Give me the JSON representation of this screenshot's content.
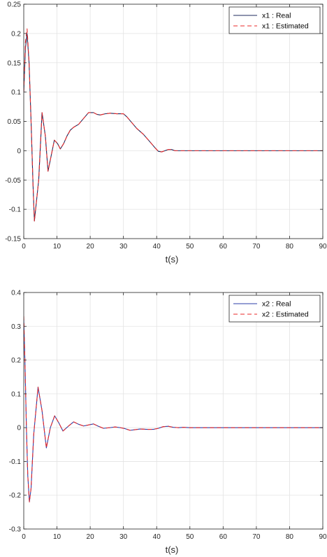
{
  "chart_data": [
    {
      "type": "line",
      "xlabel": "t(s)",
      "ylabel": "",
      "title": "",
      "xlim": [
        0,
        90
      ],
      "ylim": [
        -0.15,
        0.25
      ],
      "xticks": [
        0,
        10,
        20,
        30,
        40,
        50,
        60,
        70,
        80,
        90
      ],
      "xtick_labels": [
        "0",
        "10",
        "20",
        "30",
        "40",
        "50",
        "60",
        "70",
        "80",
        "90"
      ],
      "yticks": [
        -0.15,
        -0.1,
        -0.05,
        0,
        0.05,
        0.1,
        0.15,
        0.2,
        0.25
      ],
      "ytick_labels": [
        "-0.15",
        "-0.1",
        "-0.05",
        "0",
        "0.05",
        "0.1",
        "0.15",
        "0.2",
        "0.25"
      ],
      "grid": true,
      "legend_position": "top-right",
      "series": [
        {
          "name": "x1 : Real",
          "color": "#1f2a5c",
          "style": "solid",
          "x": [
            0,
            0.5,
            1.0,
            1.6,
            2.2,
            2.8,
            3.2,
            4.5,
            5.5,
            6.5,
            7.3,
            8.2,
            9.2,
            10.2,
            11.0,
            12.0,
            13.0,
            14.0,
            15.0,
            16.5,
            18.0,
            19.5,
            21.0,
            22.0,
            23.0,
            24.5,
            26.0,
            28.0,
            30.0,
            31.0,
            32.5,
            34.0,
            36.0,
            38.0,
            39.5,
            40.5,
            41.5,
            42.5,
            43.5,
            44.5,
            45.5,
            47.0,
            49.0,
            52.0,
            60.0,
            70.0,
            80.0,
            90.0
          ],
          "y": [
            0.1,
            0.175,
            0.2,
            0.15,
            0.05,
            -0.06,
            -0.12,
            -0.05,
            0.065,
            0.025,
            -0.035,
            -0.01,
            0.018,
            0.012,
            0.003,
            0.012,
            0.025,
            0.035,
            0.04,
            0.045,
            0.055,
            0.065,
            0.065,
            0.062,
            0.061,
            0.063,
            0.064,
            0.063,
            0.063,
            0.058,
            0.048,
            0.038,
            0.028,
            0.015,
            0.005,
            -0.001,
            -0.002,
            0.0,
            0.002,
            0.002,
            0.0,
            0.0,
            0.0,
            0.0,
            0.0,
            0.0,
            0.0,
            0.0
          ]
        },
        {
          "name": "x1 : Estimated",
          "color": "#e8292a",
          "style": "dashed",
          "x": [
            0,
            0.5,
            1.0,
            1.6,
            2.2,
            2.8,
            3.2,
            4.5,
            5.5,
            6.5,
            7.3,
            8.2,
            9.2,
            10.2,
            11.0,
            12.0,
            13.0,
            14.0,
            15.0,
            16.5,
            18.0,
            19.5,
            21.0,
            22.0,
            23.0,
            24.5,
            26.0,
            28.0,
            30.0,
            31.0,
            32.5,
            34.0,
            36.0,
            38.0,
            39.5,
            40.5,
            41.5,
            42.5,
            43.5,
            44.5,
            45.5,
            47.0,
            49.0,
            52.0,
            60.0,
            70.0,
            80.0,
            90.0
          ],
          "y": [
            0.1,
            0.185,
            0.208,
            0.152,
            0.05,
            -0.06,
            -0.12,
            -0.05,
            0.065,
            0.025,
            -0.035,
            -0.01,
            0.018,
            0.012,
            0.003,
            0.012,
            0.025,
            0.035,
            0.04,
            0.045,
            0.055,
            0.065,
            0.065,
            0.062,
            0.061,
            0.063,
            0.064,
            0.063,
            0.063,
            0.058,
            0.048,
            0.038,
            0.028,
            0.015,
            0.005,
            -0.001,
            -0.002,
            0.0,
            0.002,
            0.002,
            0.0,
            0.0,
            0.0,
            0.0,
            0.0,
            0.0,
            0.0,
            0.0
          ]
        }
      ]
    },
    {
      "type": "line",
      "xlabel": "t(s)",
      "ylabel": "",
      "title": "",
      "xlim": [
        0,
        90
      ],
      "ylim": [
        -0.3,
        0.4
      ],
      "xticks": [
        0,
        10,
        20,
        30,
        40,
        50,
        60,
        70,
        80,
        90
      ],
      "xtick_labels": [
        "0",
        "10",
        "20",
        "30",
        "40",
        "50",
        "60",
        "70",
        "80",
        "90"
      ],
      "yticks": [
        -0.3,
        -0.2,
        -0.1,
        0,
        0.1,
        0.2,
        0.3,
        0.4
      ],
      "ytick_labels": [
        "-0.3",
        "-0.2",
        "-0.1",
        "0",
        "0.1",
        "0.2",
        "0.3",
        "0.4"
      ],
      "grid": true,
      "legend_position": "top-right",
      "series": [
        {
          "name": "x2 : Real",
          "color": "#2b3ea8",
          "style": "solid",
          "x": [
            0,
            0.4,
            0.8,
            1.2,
            1.7,
            2.2,
            3.0,
            4.3,
            5.5,
            6.8,
            8.0,
            9.3,
            10.5,
            11.8,
            13.5,
            15.0,
            16.5,
            18.0,
            19.5,
            21.0,
            22.5,
            24.0,
            26.0,
            27.5,
            29.0,
            30.5,
            32.0,
            33.5,
            35.0,
            37.0,
            39.0,
            40.5,
            42.0,
            43.5,
            45.0,
            46.5,
            48.0,
            50.0,
            55.0,
            60.0,
            70.0,
            80.0,
            90.0
          ],
          "y": [
            0.32,
            0.18,
            0.0,
            -0.14,
            -0.22,
            -0.18,
            -0.02,
            0.12,
            0.05,
            -0.06,
            0.0,
            0.035,
            0.015,
            -0.01,
            0.005,
            0.017,
            0.01,
            0.005,
            0.008,
            0.011,
            0.004,
            -0.002,
            0.0,
            0.002,
            0.0,
            -0.003,
            -0.008,
            -0.006,
            -0.004,
            -0.005,
            -0.005,
            -0.002,
            0.003,
            0.004,
            0.001,
            0.0,
            0.001,
            0.0,
            0.0,
            0.0,
            0.0,
            0.0,
            0.0
          ]
        },
        {
          "name": "x2 : Estimated",
          "color": "#e8292a",
          "style": "dashed",
          "x": [
            0,
            0.4,
            0.8,
            1.2,
            1.7,
            2.2,
            3.0,
            4.3,
            5.5,
            6.8,
            8.0,
            9.3,
            10.5,
            11.8,
            13.5,
            15.0,
            16.5,
            18.0,
            19.5,
            21.0,
            22.5,
            24.0,
            26.0,
            27.5,
            29.0,
            30.5,
            32.0,
            33.5,
            35.0,
            37.0,
            39.0,
            40.5,
            42.0,
            43.5,
            45.0,
            46.5,
            48.0,
            50.0,
            55.0,
            60.0,
            70.0,
            80.0,
            90.0
          ],
          "y": [
            0.33,
            0.18,
            0.0,
            -0.14,
            -0.22,
            -0.18,
            -0.02,
            0.12,
            0.05,
            -0.06,
            0.0,
            0.035,
            0.015,
            -0.01,
            0.005,
            0.017,
            0.01,
            0.005,
            0.008,
            0.011,
            0.004,
            -0.002,
            0.0,
            0.002,
            0.0,
            -0.003,
            -0.008,
            -0.006,
            -0.004,
            -0.005,
            -0.005,
            -0.002,
            0.003,
            0.004,
            0.001,
            0.0,
            0.001,
            0.0,
            0.0,
            0.0,
            0.0,
            0.0,
            0.0
          ]
        }
      ]
    }
  ]
}
